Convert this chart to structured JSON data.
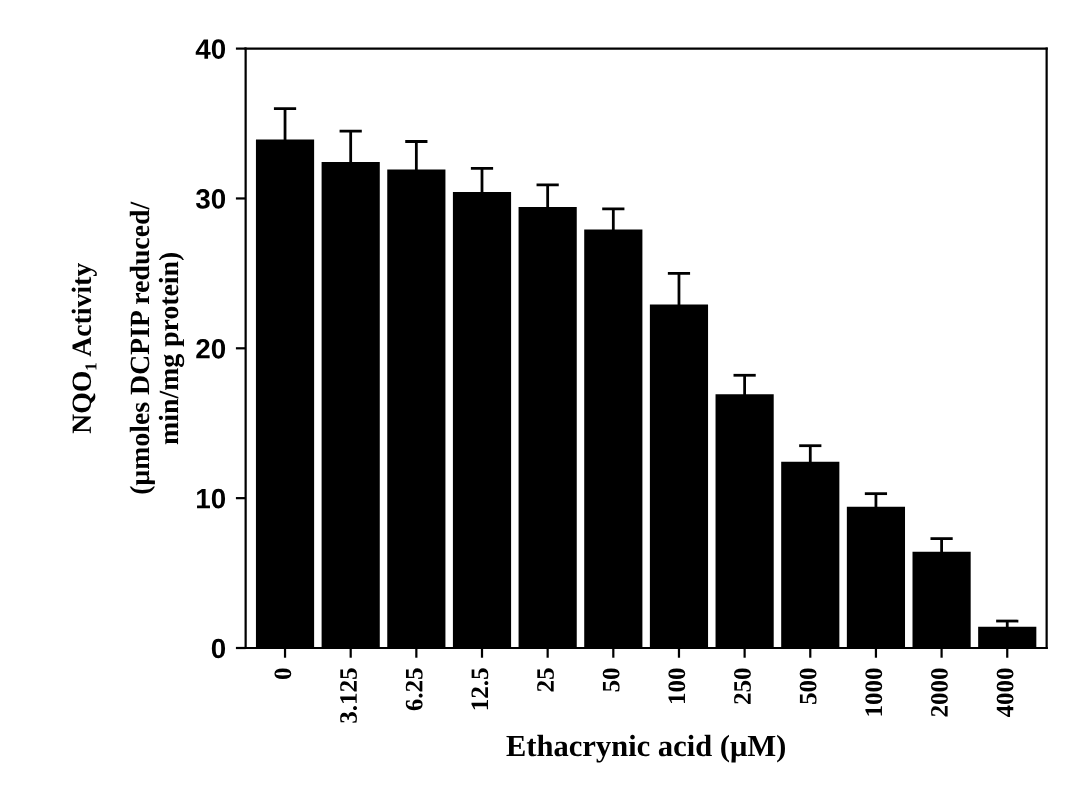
{
  "chart_data": {
    "type": "bar",
    "xlabel": "Ethacrynic acid (μM)",
    "ylabel": "NQO₁ Activity\n\n(μmoles DCPIP reduced/\nmin/mg protein)",
    "categories": [
      "0",
      "3.125",
      "6.25",
      "12.5",
      "25",
      "50",
      "100",
      "250",
      "500",
      "1000",
      "2000",
      "4000"
    ],
    "values": [
      34,
      32.5,
      32,
      30.5,
      29.5,
      28,
      23,
      17,
      12.5,
      9.5,
      6.5,
      1.5
    ],
    "errors": [
      2,
      2,
      1.8,
      1.5,
      1.4,
      1.3,
      2,
      1.2,
      1,
      0.8,
      0.8,
      0.3
    ],
    "color": "#000000",
    "ylim": [
      0,
      40
    ],
    "yticks": [
      0,
      10,
      20,
      30,
      40
    ],
    "grid": false
  }
}
